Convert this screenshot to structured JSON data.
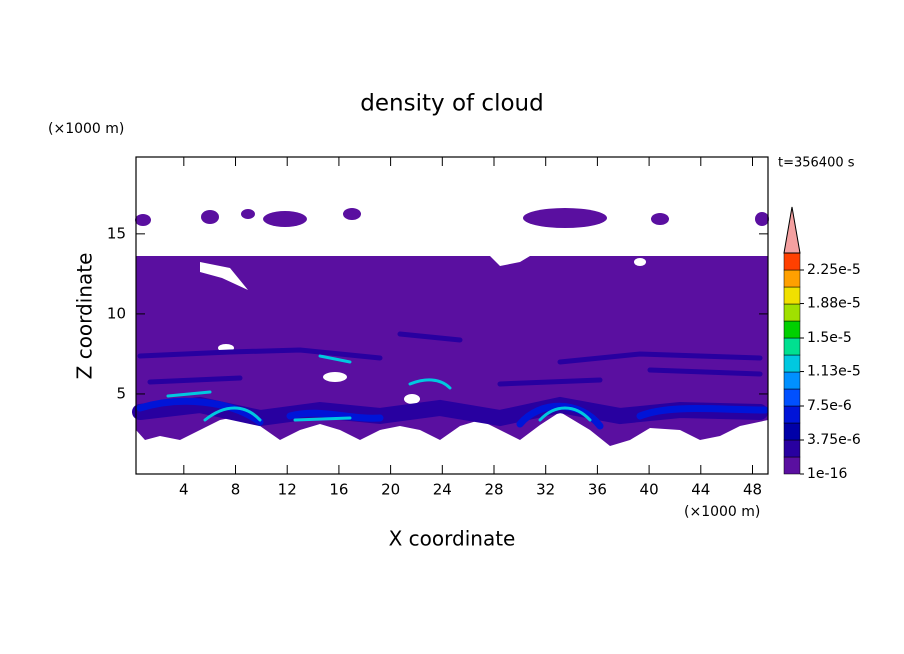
{
  "chart_data": {
    "type": "contour",
    "title": "density of cloud",
    "time_label": "t=356400 s",
    "xlabel": "X coordinate",
    "x_unit": "(×1000 m)",
    "ylabel": "Z coordinate",
    "y_unit": "(×1000 m)",
    "xlim": [
      0.3,
      49.2
    ],
    "ylim": [
      0,
      19.8
    ],
    "xticks": [
      4,
      8,
      12,
      16,
      20,
      24,
      28,
      32,
      36,
      40,
      44,
      48
    ],
    "yticks": [
      5,
      10,
      15
    ],
    "colorbar": {
      "ticks": [
        {
          "value": 1e-16,
          "label": "1e-16"
        },
        {
          "value": 3.75e-06,
          "label": "3.75e-6"
        },
        {
          "value": 7.5e-06,
          "label": "7.5e-6"
        },
        {
          "value": 1.13e-05,
          "label": "1.13e-5"
        },
        {
          "value": 1.5e-05,
          "label": "1.5e-5"
        },
        {
          "value": 1.88e-05,
          "label": "1.88e-5"
        },
        {
          "value": 2.25e-05,
          "label": "2.25e-5"
        }
      ],
      "colors": [
        "#5a0fa0",
        "#2800a0",
        "#0000a8",
        "#0014d8",
        "#0050ff",
        "#0090ff",
        "#00c8e0",
        "#00e090",
        "#00d000",
        "#a0e000",
        "#f0e000",
        "#ffa000",
        "#ff4000"
      ],
      "extend_color": "#f4a0a0"
    }
  }
}
